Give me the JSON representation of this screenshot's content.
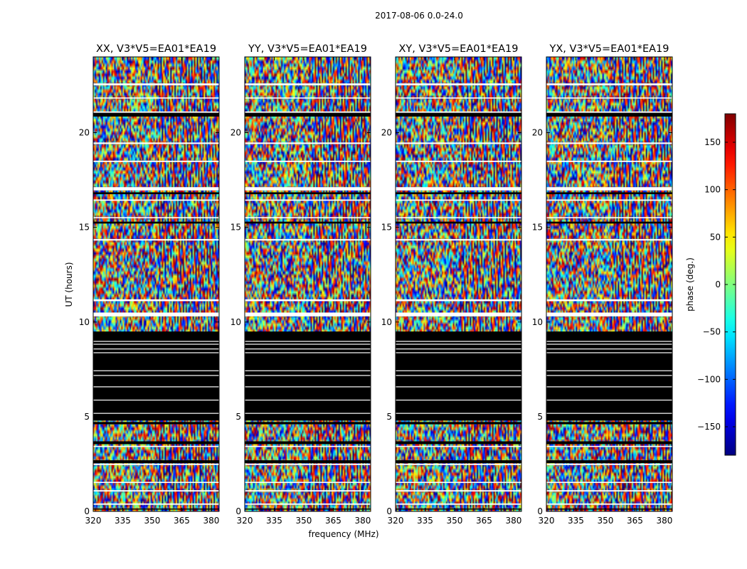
{
  "chart_data": {
    "type": "heatmap",
    "title": "2017-08-06 0.0-24.0",
    "xlabel": "frequency (MHz)",
    "ylabel": "UT (hours)",
    "xlim": [
      320,
      384
    ],
    "ylim": [
      0,
      24
    ],
    "x_ticks": [
      "320",
      "335",
      "350",
      "365",
      "380"
    ],
    "x_tick_values": [
      320,
      335,
      350,
      365,
      380
    ],
    "y_ticks": [
      "0",
      "5",
      "10",
      "15",
      "20"
    ],
    "y_tick_values": [
      0,
      5,
      10,
      15,
      20
    ],
    "panels": [
      {
        "title": "XX, V3*V5=EA01*EA19"
      },
      {
        "title": "YY, V3*V5=EA01*EA19"
      },
      {
        "title": "XY, V3*V5=EA01*EA19"
      },
      {
        "title": "YX, V3*V5=EA01*EA19"
      }
    ],
    "colorbar": {
      "label": "phase (deg.)",
      "range": [
        -180,
        180
      ],
      "ticks": [
        "−150",
        "−100",
        "−50",
        "0",
        "50",
        "100",
        "150"
      ],
      "tick_values": [
        -150,
        -100,
        -50,
        0,
        50,
        100,
        150
      ],
      "colormap": "jet"
    },
    "flagged_ut_ranges": [
      [
        4.8,
        9.5
      ]
    ]
  }
}
